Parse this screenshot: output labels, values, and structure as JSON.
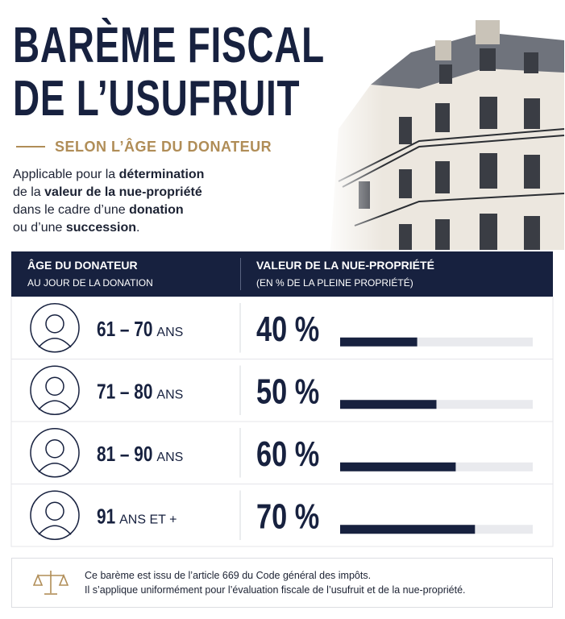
{
  "header": {
    "title_lines": [
      "BARÈME FISCAL",
      "DE L’USUFRUIT"
    ],
    "subtitle": "SELON L’ÂGE DU DONATEUR",
    "intro": [
      [
        "Applicable pour la ",
        {
          "text": "détermination",
          "bold": true
        }
      ],
      [
        "de la ",
        {
          "text": "valeur de la nue-propriété",
          "bold": true
        }
      ],
      [
        "dans le cadre d’une ",
        {
          "text": "donation",
          "bold": true
        }
      ],
      [
        "ou d’une ",
        {
          "text": "succession",
          "bold": true
        },
        "."
      ]
    ]
  },
  "table": {
    "columns": [
      {
        "title": "ÂGE DU DONATEUR",
        "subtitle": "AU JOUR DE LA DONATION"
      },
      {
        "title": "VALEUR DE LA NUE-PROPRIÉTÉ",
        "subtitle": "(EN % DE LA PLEINE PROPRIÉTÉ)"
      }
    ],
    "rows": [
      {
        "age": "61 – 70",
        "age_unit": "ANS",
        "value": 40,
        "value_label": "40 %"
      },
      {
        "age": "71 – 80",
        "age_unit": "ANS",
        "value": 50,
        "value_label": "50 %"
      },
      {
        "age": "81 – 90",
        "age_unit": "ANS",
        "value": 60,
        "value_label": "60 %"
      },
      {
        "age": "91",
        "age_unit": "ANS ET +",
        "value": 70,
        "value_label": "70 %"
      }
    ],
    "bar_color": "#17213f",
    "track_color": "#e9eaee"
  },
  "footer": {
    "lines": [
      "Ce barème est issu de l’article 669 du Code général des impôts.",
      "Il s’applique uniformément pour l’évaluation fiscale de l’usufruit et de la nue-propriété."
    ]
  }
}
